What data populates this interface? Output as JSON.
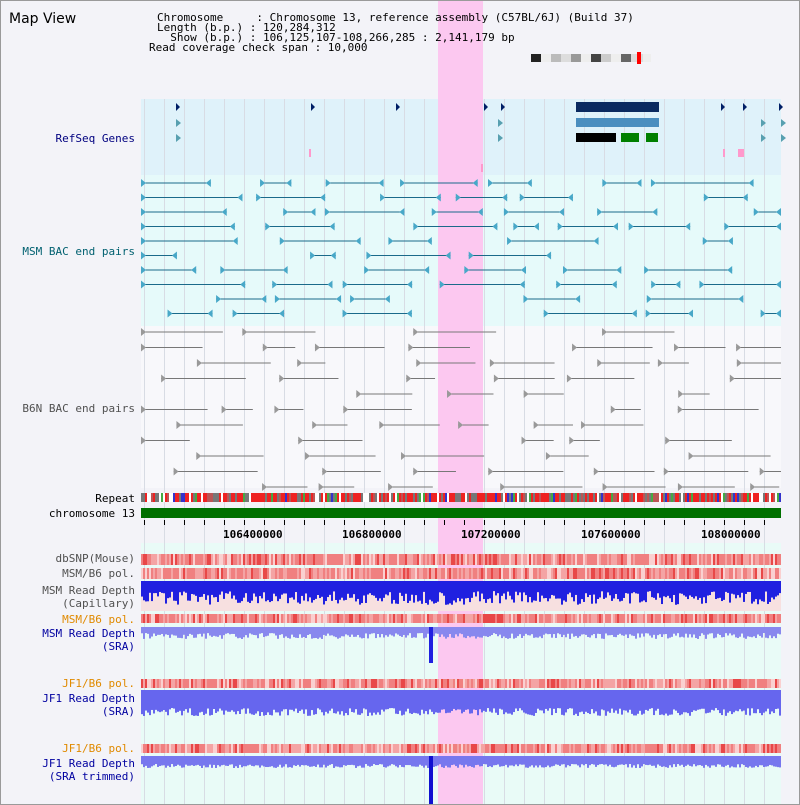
{
  "title": "Map View",
  "header": {
    "rows": [
      "Chromosome     : Chromosome 13, reference assembly (C57BL/6J) (Build 37)",
      "Length (b.p.) : 120,284,312",
      "  Show (b.p.) : 106,125,107-108,266,285 : 2,141,179 bp",
      "Read coverage check span : 10,000"
    ]
  },
  "tracks": {
    "refseq": "RefSeq Genes",
    "msm_bac": "MSM BAC end pairs",
    "b6n_bac": "B6N BAC end pairs",
    "repeat": "Repeat",
    "chromosome": "chromosome 13",
    "dbsnp": "dbSNP(Mouse)",
    "msm_b6_pol_1": "MSM/B6 pol.",
    "msm_depth_cap": [
      "MSM Read Depth",
      "(Capillary)"
    ],
    "msm_b6_pol_2": "MSM/B6 pol.",
    "msm_depth_sra": [
      "MSM Read Depth",
      "(SRA)"
    ],
    "jf1_b6_pol_1": "JF1/B6 pol.",
    "jf1_depth_sra": [
      "JF1 Read Depth",
      "(SRA)"
    ],
    "jf1_b6_pol_2": "JF1/B6 pol.",
    "jf1_depth_trim": [
      "JF1 Read Depth",
      "(SRA trimmed)"
    ]
  },
  "axis": {
    "ticks": [
      "106400000",
      "106800000",
      "107200000",
      "107600000",
      "108000000"
    ]
  },
  "colors": {
    "refseq_label": "#000080",
    "msm_label": "#006070",
    "b6n_label": "#505050",
    "orange_label": "#e08a00",
    "blue_label": "#0000a0",
    "highlight": "#ff99ee",
    "chromosome_bar": "#007000"
  }
}
